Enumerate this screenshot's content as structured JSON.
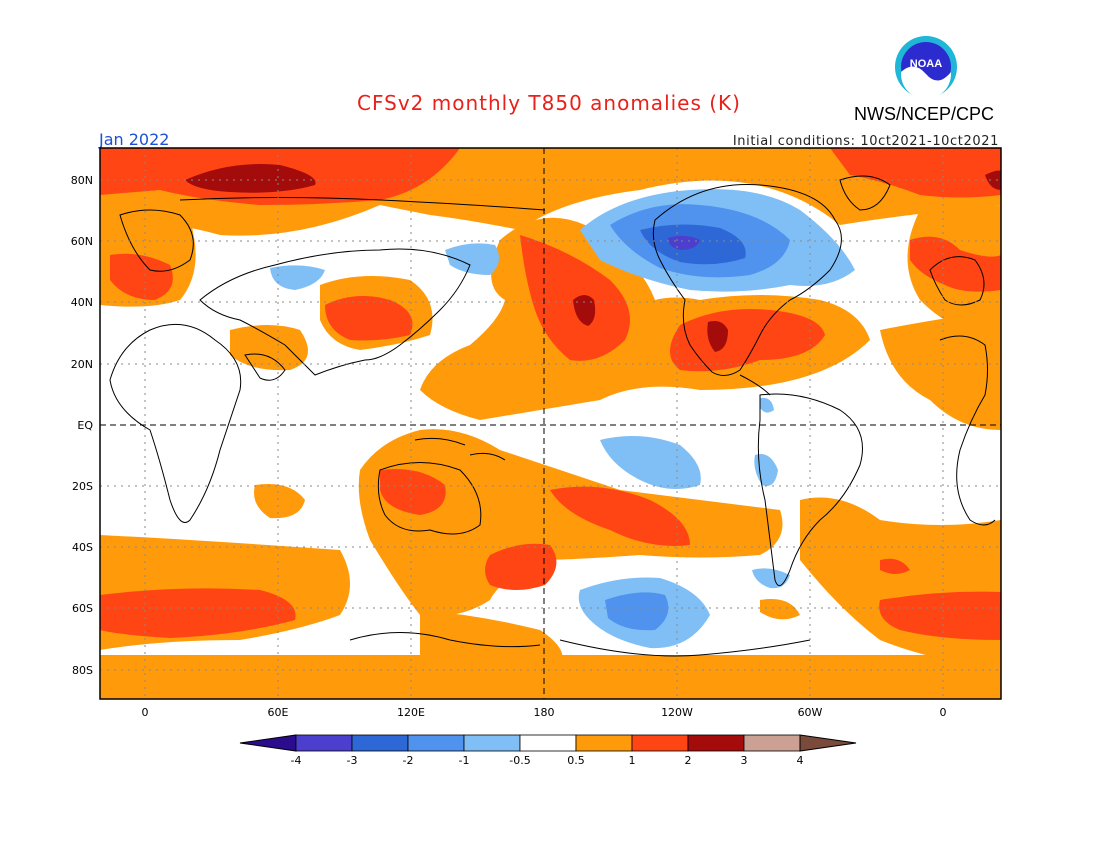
{
  "header": {
    "title": "CFSv2 monthly T850 anomalies (K)",
    "agency": "NWS/NCEP/CPC",
    "logo_text": "NOAA",
    "valid_month": "Jan 2022",
    "initial_conditions": "Initial conditions: 10ct2021-10ct2021"
  },
  "map": {
    "projection": "cylindrical equidistant",
    "reference_lines": [
      "EQ",
      "180"
    ],
    "lat_labels": [
      "80N",
      "60N",
      "40N",
      "20N",
      "EQ",
      "20S",
      "40S",
      "60S",
      "80S"
    ],
    "lon_labels": [
      "0",
      "60E",
      "120E",
      "180",
      "120W",
      "60W",
      "0"
    ]
  },
  "colorbar": {
    "labels": [
      "-4",
      "-3",
      "-2",
      "-1",
      "-0.5",
      "0.5",
      "1",
      "2",
      "3",
      "4"
    ],
    "colors": [
      "#2a0c8c",
      "#4c3fce",
      "#2e67d6",
      "#4f93ee",
      "#7fbff6",
      "#ffffff",
      "#ff9b0a",
      "#ff4513",
      "#a40b0b",
      "#caa192",
      "#7a4a3a"
    ]
  },
  "colors": {
    "neutral": "#ffffff",
    "pos_05": "#ff9b0a",
    "pos_1": "#ff4513",
    "pos_2": "#a40b0b",
    "neg_05": "#7fbff6",
    "neg_1": "#4f93ee",
    "neg_2": "#2e67d6",
    "neg_3": "#4c3fce"
  }
}
